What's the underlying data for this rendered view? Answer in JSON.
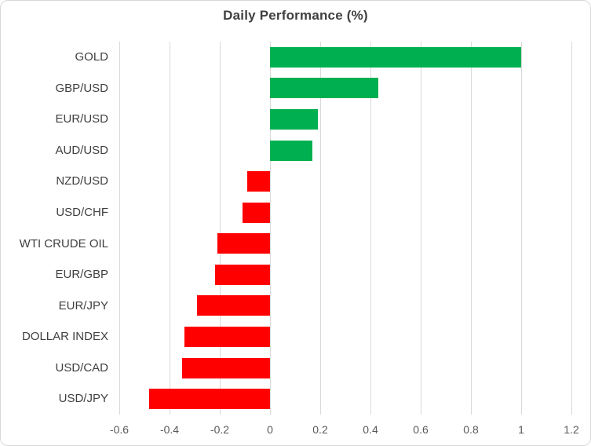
{
  "chart_data": {
    "type": "bar",
    "orientation": "horizontal",
    "title": "Daily Performance (%)",
    "categories": [
      "GOLD",
      "GBP/USD",
      "EUR/USD",
      "AUD/USD",
      "NZD/USD",
      "USD/CHF",
      "WTI CRUDE OIL",
      "EUR/GBP",
      "EUR/JPY",
      "DOLLAR INDEX",
      "USD/CAD",
      "USD/JPY"
    ],
    "values": [
      1.0,
      0.43,
      0.19,
      0.17,
      -0.09,
      -0.11,
      -0.21,
      -0.22,
      -0.29,
      -0.34,
      -0.35,
      -0.48
    ],
    "xlabel": "",
    "ylabel": "",
    "xlim": [
      -0.6,
      1.2
    ],
    "xticks": [
      -0.6,
      -0.4,
      -0.2,
      0,
      0.2,
      0.4,
      0.6,
      0.8,
      1,
      1.2
    ],
    "xtick_labels": [
      "-0.6",
      "-0.4",
      "-0.2",
      "0",
      "0.2",
      "0.4",
      "0.6",
      "0.8",
      "1",
      "1.2"
    ],
    "grid": "vertical-on",
    "legend": "none",
    "colors": {
      "positive_bar": "#00b050",
      "negative_bar": "#ff0000",
      "gridline": "#d9d9d9",
      "title_text": "#404040",
      "category_text": "#404040",
      "tick_text": "#595959",
      "frame_border": "#d9d9d9",
      "background": "#ffffff"
    }
  }
}
